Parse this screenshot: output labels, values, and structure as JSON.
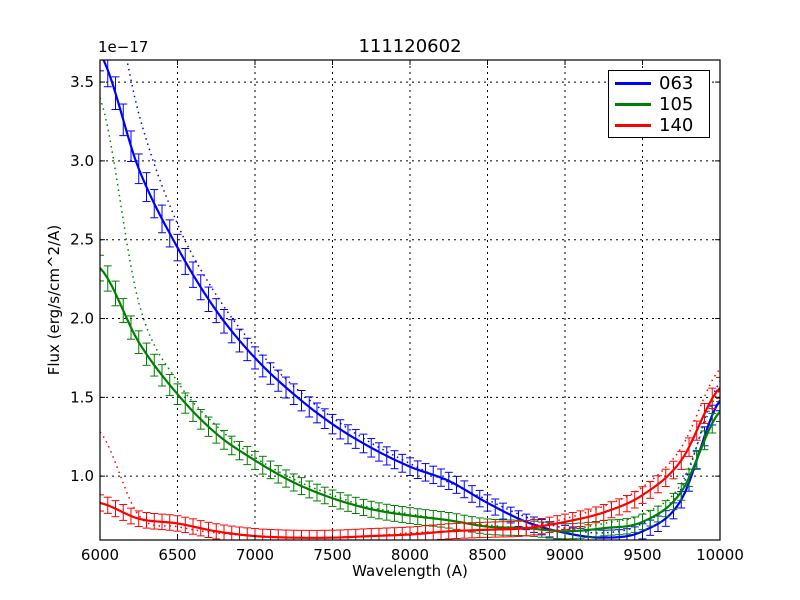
{
  "chart_data": {
    "type": "line",
    "title": "111120602",
    "xlabel": "Wavelength (A)",
    "ylabel": "Flux (erg/s/cm^2/A)",
    "y_offset_label": "1e−17",
    "xlim": [
      6000,
      10000
    ],
    "ylim": [
      0.595,
      3.64
    ],
    "y_scale_factor": 1e-17,
    "grid": true,
    "legend_position": "upper right",
    "xticks": [
      6000,
      6500,
      7000,
      7500,
      8000,
      8500,
      9000,
      9500,
      10000
    ],
    "yticks": [
      1.0,
      1.5,
      2.0,
      2.5,
      3.0,
      3.5
    ],
    "ytick_labels": [
      "1.0",
      "1.5",
      "2.0",
      "2.5",
      "3.0",
      "3.5"
    ],
    "x": [
      6000,
      6250,
      6500,
      6750,
      7000,
      7250,
      7500,
      7750,
      8000,
      8250,
      8500,
      8750,
      9000,
      9250,
      9500,
      9750,
      10000
    ],
    "series": [
      {
        "name": "063",
        "color": "#0000ff",
        "values": [
          3.68,
          2.95,
          2.45,
          2.05,
          1.75,
          1.52,
          1.33,
          1.18,
          1.06,
          0.97,
          0.83,
          0.71,
          0.64,
          0.61,
          0.65,
          0.85,
          1.48
        ],
        "model": [
          4.4,
          3.3,
          2.6,
          2.15,
          1.82,
          1.57,
          1.37,
          1.21,
          1.08,
          0.96,
          0.85,
          0.74,
          0.67,
          0.64,
          0.7,
          0.92,
          1.6
        ]
      },
      {
        "name": "105",
        "color": "#008000",
        "values": [
          2.32,
          1.85,
          1.52,
          1.27,
          1.1,
          0.96,
          0.86,
          0.79,
          0.75,
          0.72,
          0.68,
          0.67,
          0.65,
          0.67,
          0.71,
          0.9,
          1.41
        ],
        "model": [
          3.4,
          2.1,
          1.6,
          1.32,
          1.12,
          0.98,
          0.88,
          0.8,
          0.76,
          0.72,
          0.69,
          0.67,
          0.66,
          0.7,
          0.76,
          0.95,
          1.55
        ]
      },
      {
        "name": "140",
        "color": "#ff0000",
        "values": [
          0.83,
          0.73,
          0.7,
          0.65,
          0.62,
          0.61,
          0.61,
          0.62,
          0.63,
          0.65,
          0.66,
          0.67,
          0.71,
          0.77,
          0.88,
          1.1,
          1.56
        ],
        "model": [
          1.28,
          0.75,
          0.68,
          0.64,
          0.62,
          0.61,
          0.61,
          0.62,
          0.64,
          0.65,
          0.66,
          0.68,
          0.73,
          0.81,
          0.93,
          1.18,
          1.68
        ]
      }
    ]
  },
  "figure": {
    "title": "111120602",
    "xlabel": "Wavelength (A)",
    "ylabel": "Flux (erg/s/cm^2/A)",
    "offset": "1e−17"
  },
  "legend": {
    "items": [
      {
        "label": "063",
        "color": "#0000ff"
      },
      {
        "label": "105",
        "color": "#008000"
      },
      {
        "label": "140",
        "color": "#ff0000"
      }
    ]
  }
}
